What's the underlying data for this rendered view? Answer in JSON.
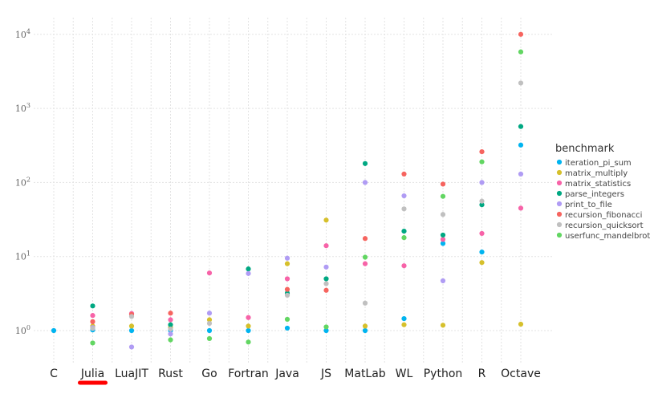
{
  "chart_data": {
    "type": "scatter",
    "title": "",
    "xlabel": "",
    "ylabel": "",
    "yscale": "log",
    "ylim": [
      0.4,
      14000
    ],
    "grid": true,
    "legend": {
      "title": "benchmark",
      "placement": "right"
    },
    "highlight_category": "Julia",
    "highlight_color": "#ff0000",
    "y_tick_labels": [
      {
        "value": 1,
        "base": "10",
        "exp": "0"
      },
      {
        "value": 10,
        "base": "10",
        "exp": "1"
      },
      {
        "value": 100,
        "base": "10",
        "exp": "2"
      },
      {
        "value": 1000,
        "base": "10",
        "exp": "3"
      },
      {
        "value": 10000,
        "base": "10",
        "exp": "4"
      }
    ],
    "categories": [
      "C",
      "Julia",
      "LuaJIT",
      "Rust",
      "Go",
      "Fortran",
      "Java",
      "JS",
      "MatLab",
      "WL",
      "Python",
      "R",
      "Octave"
    ],
    "series": [
      {
        "name": "iteration_pi_sum",
        "color": "#00b4f0",
        "values": [
          1.0,
          1.02,
          1.0,
          1.0,
          1.0,
          1.0,
          1.08,
          1.0,
          1.0,
          1.45,
          15.0,
          11.5,
          320
        ]
      },
      {
        "name": "matrix_multiply",
        "color": "#d6c02c",
        "values": [
          null,
          1.15,
          1.15,
          1.1,
          1.4,
          1.15,
          8.0,
          31.0,
          1.15,
          1.2,
          1.18,
          8.3,
          1.22
        ]
      },
      {
        "name": "matrix_statistics",
        "color": "#f763a8",
        "values": [
          null,
          1.6,
          1.7,
          1.4,
          6.0,
          1.5,
          5.0,
          14.0,
          8.0,
          7.5,
          17.0,
          20.5,
          45.0
        ]
      },
      {
        "name": "parse_integers",
        "color": "#00a882",
        "values": [
          null,
          2.15,
          null,
          1.2,
          null,
          6.8,
          3.2,
          5.0,
          180,
          22.0,
          19.5,
          50.0,
          570
        ]
      },
      {
        "name": "print_to_file",
        "color": "#b09cf4",
        "values": [
          null,
          1.1,
          0.6,
          0.9,
          1.72,
          5.9,
          9.5,
          7.2,
          100,
          66.0,
          4.7,
          100,
          130
        ]
      },
      {
        "name": "recursion_fibonacci",
        "color": "#f6645f",
        "values": [
          null,
          1.32,
          1.65,
          1.72,
          null,
          null,
          3.6,
          3.5,
          17.5,
          130,
          95.0,
          260,
          10000
        ]
      },
      {
        "name": "recursion_quicksort",
        "color": "#c0c0c0",
        "values": [
          null,
          1.07,
          1.55,
          1.05,
          1.25,
          null,
          3.0,
          4.3,
          2.35,
          44.0,
          37.0,
          56.0,
          2200
        ]
      },
      {
        "name": "userfunc_mandelbrot",
        "color": "#62d662",
        "values": [
          null,
          0.68,
          null,
          0.75,
          0.78,
          0.7,
          1.42,
          1.12,
          9.8,
          18.0,
          65.0,
          190,
          5800
        ]
      }
    ]
  }
}
